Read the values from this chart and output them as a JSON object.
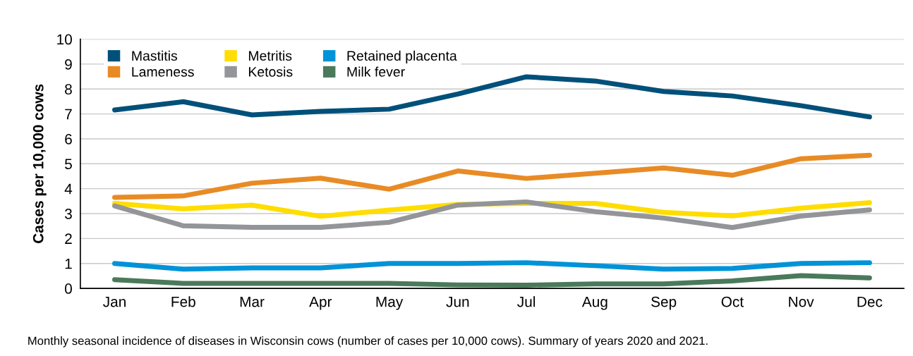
{
  "chart_data": {
    "type": "line",
    "ylabel": "Cases per 10,000 cows",
    "categories": [
      "Jan",
      "Feb",
      "Mar",
      "Apr",
      "May",
      "Jun",
      "Jul",
      "Aug",
      "Sep",
      "Oct",
      "Nov",
      "Dec"
    ],
    "series": [
      {
        "name": "Mastitis",
        "color": "#00507a",
        "values": [
          7.16,
          7.49,
          6.96,
          7.1,
          7.19,
          7.8,
          8.49,
          8.32,
          7.9,
          7.72,
          7.33,
          6.88
        ]
      },
      {
        "name": "Lameness",
        "color": "#e88b25",
        "values": [
          3.65,
          3.71,
          4.22,
          4.42,
          3.98,
          4.71,
          4.41,
          4.62,
          4.83,
          4.54,
          5.2,
          5.34
        ]
      },
      {
        "name": "Metritis",
        "color": "#ffdd00",
        "values": [
          3.41,
          3.19,
          3.34,
          2.89,
          3.14,
          3.37,
          3.41,
          3.41,
          3.05,
          2.91,
          3.22,
          3.44
        ]
      },
      {
        "name": "Ketosis",
        "color": "#939598",
        "values": [
          3.31,
          2.51,
          2.45,
          2.45,
          2.65,
          3.34,
          3.47,
          3.08,
          2.82,
          2.44,
          2.9,
          3.15
        ]
      },
      {
        "name": "Retained placenta",
        "color": "#0093d8",
        "values": [
          1.0,
          0.77,
          0.82,
          0.82,
          1.0,
          1.0,
          1.03,
          0.91,
          0.77,
          0.8,
          1.0,
          1.03
        ]
      },
      {
        "name": "Milk fever",
        "color": "#4a7a5a",
        "values": [
          0.35,
          0.2,
          0.2,
          0.2,
          0.2,
          0.14,
          0.13,
          0.18,
          0.18,
          0.3,
          0.51,
          0.42
        ]
      }
    ],
    "ylim": [
      0,
      10
    ],
    "yticks": [
      0,
      1,
      2,
      3,
      4,
      5,
      6,
      7,
      8,
      9,
      10
    ],
    "grid": "y",
    "legend": "top left",
    "marker": "none",
    "line_style": "solid",
    "annotations": [
      "Monthly seasonal incidence of diseases in Wisconsin cows (number of cases per 10,000 cows). Summary of years 2020 and 2021."
    ]
  }
}
